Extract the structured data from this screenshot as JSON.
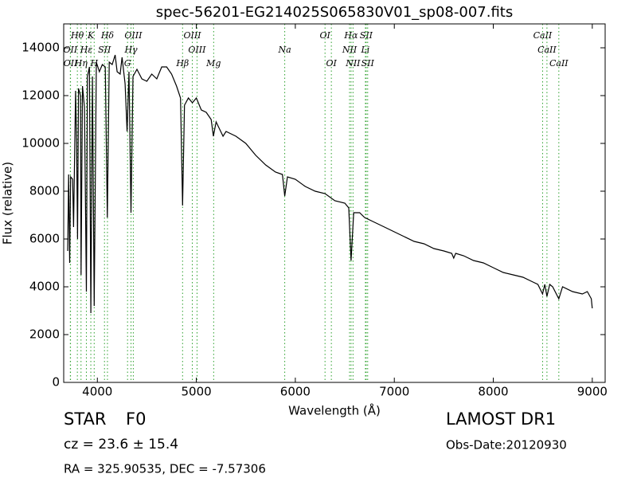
{
  "chart_data": {
    "type": "line",
    "title": "spec-56201-EG214025S065830V01_sp08-007.fits",
    "x_label": "Wavelength (Å)",
    "y_label": "Flux (relative)",
    "xlim": [
      3660,
      9130
    ],
    "ylim": [
      0,
      15000
    ],
    "xticks": [
      4000,
      5000,
      6000,
      7000,
      8000,
      9000
    ],
    "yticks": [
      0,
      2000,
      4000,
      6000,
      8000,
      10000,
      12000,
      14000
    ],
    "color": "#000000",
    "line_marker_color": "#2ca02c",
    "x": [
      3700,
      3710,
      3720,
      3730,
      3750,
      3760,
      3780,
      3790,
      3800,
      3810,
      3830,
      3835,
      3850,
      3870,
      3889,
      3900,
      3920,
      3934,
      3950,
      3968,
      3990,
      4020,
      4050,
      4080,
      4101,
      4120,
      4150,
      4180,
      4200,
      4230,
      4250,
      4280,
      4300,
      4320,
      4340,
      4360,
      4400,
      4450,
      4500,
      4550,
      4600,
      4650,
      4700,
      4750,
      4800,
      4840,
      4861,
      4880,
      4920,
      4960,
      5000,
      5050,
      5100,
      5150,
      5172,
      5200,
      5270,
      5300,
      5400,
      5500,
      5600,
      5700,
      5800,
      5870,
      5893,
      5920,
      6000,
      6100,
      6200,
      6300,
      6400,
      6500,
      6540,
      6563,
      6590,
      6650,
      6700,
      6800,
      6900,
      7000,
      7100,
      7200,
      7300,
      7400,
      7500,
      7580,
      7600,
      7620,
      7700,
      7800,
      7900,
      8000,
      8100,
      8200,
      8300,
      8400,
      8450,
      8498,
      8520,
      8542,
      8570,
      8600,
      8662,
      8700,
      8800,
      8900,
      8950,
      8990,
      9000
    ],
    "values": [
      5500,
      8700,
      5000,
      8600,
      8500,
      6500,
      12200,
      10000,
      6000,
      12300,
      12000,
      4500,
      12400,
      11500,
      3800,
      12800,
      13200,
      2900,
      12800,
      3200,
      13400,
      13000,
      13300,
      13200,
      6900,
      13400,
      13300,
      13700,
      13000,
      12900,
      13600,
      12500,
      10500,
      13000,
      7100,
      12800,
      13100,
      12700,
      12600,
      12900,
      12700,
      13200,
      13200,
      12900,
      12400,
      11900,
      7400,
      11600,
      11900,
      11700,
      11900,
      11400,
      11300,
      11000,
      10300,
      10900,
      10300,
      10500,
      10300,
      10000,
      9500,
      9100,
      8800,
      8700,
      7800,
      8600,
      8500,
      8200,
      8000,
      7900,
      7600,
      7500,
      7300,
      5100,
      7100,
      7100,
      6900,
      6700,
      6500,
      6300,
      6100,
      5900,
      5800,
      5600,
      5500,
      5400,
      5200,
      5400,
      5300,
      5100,
      5000,
      4800,
      4600,
      4500,
      4400,
      4200,
      4100,
      3700,
      4100,
      3600,
      4100,
      4000,
      3500,
      4000,
      3800,
      3700,
      3800,
      3500,
      3100
    ],
    "spectral_lines": [
      {
        "label": "Hθ",
        "x": 3798
      },
      {
        "label": "K",
        "x": 3934
      },
      {
        "label": "Hδ",
        "x": 4102
      },
      {
        "label": "OIII",
        "x": 4363
      },
      {
        "label": "OIII",
        "x": 4959
      },
      {
        "label": "OI",
        "x": 6300
      },
      {
        "label": "Hα",
        "x": 6563
      },
      {
        "label": "SII",
        "x": 6716
      },
      {
        "label": "CaII",
        "x": 8498
      },
      {
        "label": "OII",
        "x": 3727
      },
      {
        "label": "Hε",
        "x": 3889
      },
      {
        "label": "SII",
        "x": 4072
      },
      {
        "label": "Hγ",
        "x": 4340
      },
      {
        "label": "OIII",
        "x": 5007
      },
      {
        "label": "Na",
        "x": 5893
      },
      {
        "label": "NII",
        "x": 6548
      },
      {
        "label": "Li",
        "x": 6708
      },
      {
        "label": "CaII",
        "x": 8542
      },
      {
        "label": "OII",
        "x": 3729
      },
      {
        "label": "Hη",
        "x": 3835
      },
      {
        "label": "H",
        "x": 3968
      },
      {
        "label": "G",
        "x": 4305
      },
      {
        "label": "Hβ",
        "x": 4861
      },
      {
        "label": "Mg",
        "x": 5175
      },
      {
        "label": "OI",
        "x": 6364
      },
      {
        "label": "NII",
        "x": 6583
      },
      {
        "label": "SII",
        "x": 6731
      },
      {
        "label": "CaII",
        "x": 8662
      }
    ],
    "target_class": "STAR",
    "subclass": "F0",
    "redshift": "cz = 23.6  ± 15.4",
    "coordinates": "RA = 325.90535, DEC = -7.57306",
    "survey": "LAMOST DR1",
    "obs_date": "Obs-Date:20120930"
  }
}
